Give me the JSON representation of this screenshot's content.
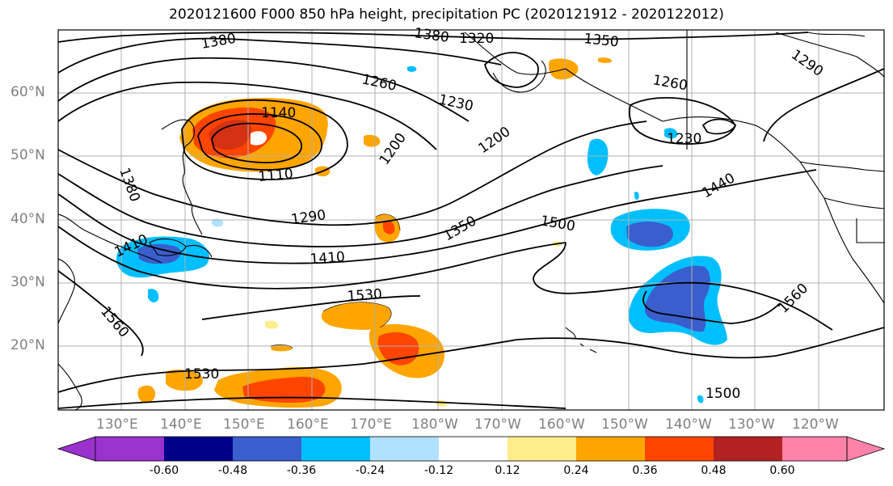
{
  "title": "2020121600 F000 850 hPa height, precipitation PC (2020121912 - 2020122012)",
  "lat_labels": [
    "60°N",
    "50°N",
    "40°N",
    "30°N",
    "20°N"
  ],
  "lon_labels": [
    "130°E",
    "140°E",
    "150°E",
    "160°E",
    "170°E",
    "180°W",
    "170°W",
    "160°W",
    "150°W",
    "140°W",
    "130°W",
    "120°W"
  ],
  "contour_labels": [
    "1380",
    "1380",
    "1320",
    "1350",
    "1290",
    "1260",
    "1230",
    "1260",
    "1140",
    "1230",
    "1200",
    "1200",
    "1110",
    "1380",
    "1290",
    "1440",
    "1500",
    "1350",
    "1410",
    "1410",
    "1530",
    "1560",
    "1560",
    "1530",
    "1500"
  ],
  "colorbar": {
    "ticks": [
      "-0.60",
      "-0.48",
      "-0.36",
      "-0.24",
      "-0.12",
      "0.12",
      "0.24",
      "0.36",
      "0.48",
      "0.60"
    ],
    "colors": [
      "#9a32cd",
      "#00008b",
      "#3a5fcd",
      "#00bfff",
      "#b0e2ff",
      "#ffffff",
      "#ffec8b",
      "#ffa500",
      "#ff4500",
      "#b22222",
      "#ff82ab"
    ]
  },
  "colors": {
    "land_outline": "#000000",
    "contour": "#000000",
    "grid": "#b0b0b0",
    "axis_label": "#808080"
  }
}
